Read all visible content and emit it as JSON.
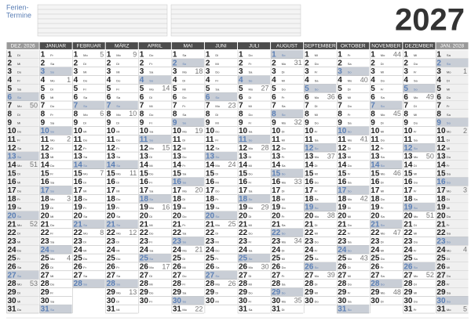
{
  "header": {
    "title_line1": "Ferien-",
    "title_line2": "Termine",
    "year": "2027"
  },
  "calendar": {
    "weekdays": [
      "Mo",
      "Di",
      "Mi",
      "Do",
      "Fr",
      "Sa",
      "So"
    ],
    "day_numbers": [
      1,
      2,
      3,
      4,
      5,
      6,
      7,
      8,
      9,
      10,
      11,
      12,
      13,
      14,
      15,
      16,
      17,
      18,
      19,
      20,
      21,
      22,
      23,
      24,
      25,
      26,
      27,
      28,
      29,
      30,
      31
    ],
    "months": [
      {
        "name": "DEZ. 2026",
        "first": 1,
        "length": 31,
        "weeks": [
          50,
          51,
          52,
          53
        ],
        "outside": true
      },
      {
        "name": "JANUAR",
        "first": 4,
        "length": 31,
        "weeks": [
          1,
          2,
          3,
          4
        ]
      },
      {
        "name": "FEBRUAR",
        "first": 0,
        "length": 28,
        "weeks": [
          5,
          6,
          7,
          8
        ]
      },
      {
        "name": "MÄRZ",
        "first": 0,
        "length": 31,
        "weeks": [
          9,
          10,
          11,
          12,
          13
        ]
      },
      {
        "name": "APRIL",
        "first": 3,
        "length": 30,
        "weeks": [
          14,
          15,
          16,
          17
        ]
      },
      {
        "name": "MAI",
        "first": 5,
        "length": 31,
        "weeks": [
          18,
          19,
          20,
          21,
          22
        ]
      },
      {
        "name": "JUNI",
        "first": 1,
        "length": 30,
        "weeks": [
          23,
          24,
          25,
          26
        ]
      },
      {
        "name": "JULI",
        "first": 3,
        "length": 31,
        "weeks": [
          27,
          28,
          29,
          30
        ]
      },
      {
        "name": "AUGUST",
        "first": 6,
        "length": 31,
        "weeks": [
          31,
          32,
          33,
          34,
          35
        ]
      },
      {
        "name": "SEPTEMBER",
        "first": 2,
        "length": 30,
        "weeks": [
          36,
          37,
          38,
          39
        ]
      },
      {
        "name": "OKTOBER",
        "first": 4,
        "length": 31,
        "weeks": [
          40,
          41,
          42,
          43
        ]
      },
      {
        "name": "NOVEMBER",
        "first": 0,
        "length": 30,
        "weeks": [
          44,
          45,
          46,
          47,
          48
        ]
      },
      {
        "name": "DEZEMBER",
        "first": 2,
        "length": 31,
        "weeks": [
          49,
          50,
          51,
          52
        ]
      },
      {
        "name": "JAN. 2028",
        "first": 5,
        "length": 31,
        "weeks": [
          1,
          2,
          3,
          4,
          5
        ],
        "outside": true
      }
    ]
  }
}
